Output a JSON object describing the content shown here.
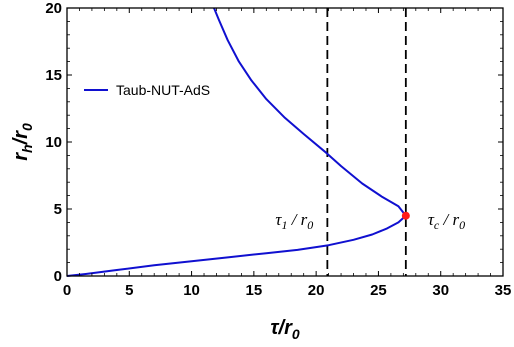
{
  "chart_data": {
    "type": "line",
    "xlabel": "τ/r",
    "xlabel_sub": "0",
    "ylabel": "r",
    "ylabel_sub1": "h",
    "ylabel_sub2": "0",
    "xlim": [
      0,
      35
    ],
    "ylim": [
      0,
      20
    ],
    "xticks": [
      "0",
      "5",
      "10",
      "15",
      "20",
      "25",
      "30",
      "35"
    ],
    "yticks": [
      "0",
      "5",
      "10",
      "15",
      "20"
    ],
    "series": [
      {
        "name": "Taub-NUT-AdS",
        "color": "#1010d0",
        "points": [
          [
            0.0,
            0.0
          ],
          [
            1.5,
            0.15
          ],
          [
            4.0,
            0.45
          ],
          [
            7.0,
            0.8
          ],
          [
            10.0,
            1.1
          ],
          [
            13.0,
            1.4
          ],
          [
            16.0,
            1.7
          ],
          [
            18.5,
            1.95
          ],
          [
            21.0,
            2.3
          ],
          [
            23.0,
            2.7
          ],
          [
            24.5,
            3.1
          ],
          [
            25.7,
            3.55
          ],
          [
            26.6,
            4.0
          ],
          [
            27.2,
            4.5
          ],
          [
            26.6,
            5.2
          ],
          [
            25.3,
            5.9
          ],
          [
            23.7,
            6.9
          ],
          [
            22.0,
            8.2
          ],
          [
            20.8,
            9.2
          ],
          [
            19.0,
            10.6
          ],
          [
            17.5,
            11.8
          ],
          [
            16.0,
            13.2
          ],
          [
            14.8,
            14.6
          ],
          [
            13.8,
            16.0
          ],
          [
            12.9,
            17.6
          ],
          [
            12.2,
            19.1
          ],
          [
            11.8,
            20.0
          ]
        ]
      }
    ],
    "vlines": [
      {
        "x": 20.9,
        "label_main": "τ",
        "label_sub": "1",
        "label_rest": " / r",
        "label_sub2": "0",
        "style": "dashed"
      },
      {
        "x": 27.2,
        "label_main": "τ",
        "label_sub": "c",
        "label_rest": " / r",
        "label_sub2": "0",
        "style": "dashed"
      }
    ],
    "critical_point": {
      "x": 27.2,
      "y": 4.5,
      "color": "#ff1a1a"
    },
    "legend": "upper-left"
  }
}
